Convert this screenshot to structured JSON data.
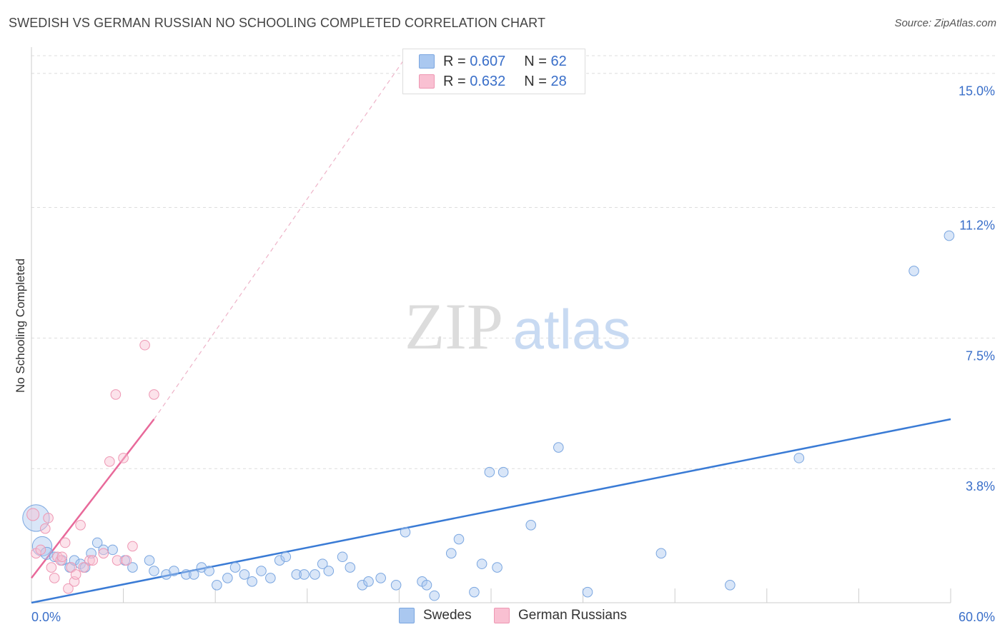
{
  "title": "SWEDISH VS GERMAN RUSSIAN NO SCHOOLING COMPLETED CORRELATION CHART",
  "source": "Source: ZipAtlas.com",
  "watermark": {
    "zip": "ZIP",
    "atlas": "atlas"
  },
  "legend": {
    "rows": [
      {
        "r_label": "R =",
        "r_value": "0.607",
        "n_label": "N =",
        "n_value": "62",
        "color": "#aac8f0",
        "border": "#7aa6e0"
      },
      {
        "r_label": "R =",
        "r_value": "0.632",
        "n_label": "N =",
        "n_value": "28",
        "color": "#f9c0d2",
        "border": "#ee97b3"
      }
    ]
  },
  "bottom_legend": [
    {
      "label": "Swedes",
      "color": "#aac8f0",
      "border": "#7aa6e0"
    },
    {
      "label": "German Russians",
      "color": "#f9c0d2",
      "border": "#ee97b3"
    }
  ],
  "chart_data": {
    "type": "scatter",
    "title": "SWEDISH VS GERMAN RUSSIAN NO SCHOOLING COMPLETED CORRELATION CHART",
    "xlabel": "",
    "ylabel": "No Schooling Completed",
    "xlim": [
      0,
      60
    ],
    "ylim": [
      0,
      15.5
    ],
    "x_tick_labels": [
      "0.0%",
      "60.0%"
    ],
    "y_ticks": [
      3.8,
      7.5,
      11.2,
      15.0
    ],
    "y_tick_labels": [
      "3.8%",
      "7.5%",
      "11.2%",
      "15.0%"
    ],
    "colors": {
      "swedes": "#3a7bd5",
      "german_russians": "#e8699a"
    },
    "series": [
      {
        "name": "Swedes",
        "points": [
          [
            0.3,
            2.4,
            2.2
          ],
          [
            0.7,
            1.6,
            1.6
          ],
          [
            1.0,
            1.4,
            1.0
          ],
          [
            1.5,
            1.3,
            0.8
          ],
          [
            2.0,
            1.2,
            0.8
          ],
          [
            2.5,
            1.0,
            0.8
          ],
          [
            2.8,
            1.2,
            0.8
          ],
          [
            3.2,
            1.1,
            0.8
          ],
          [
            3.5,
            1.0,
            0.8
          ],
          [
            3.9,
            1.4,
            0.8
          ],
          [
            4.3,
            1.7,
            0.8
          ],
          [
            4.7,
            1.5,
            0.8
          ],
          [
            5.3,
            1.5,
            0.8
          ],
          [
            6.1,
            1.2,
            0.8
          ],
          [
            6.6,
            1.0,
            0.8
          ],
          [
            7.7,
            1.2,
            0.8
          ],
          [
            8.0,
            0.9,
            0.8
          ],
          [
            8.8,
            0.8,
            0.8
          ],
          [
            9.3,
            0.9,
            0.8
          ],
          [
            10.1,
            0.8,
            0.8
          ],
          [
            10.6,
            0.8,
            0.8
          ],
          [
            11.1,
            1.0,
            0.8
          ],
          [
            11.6,
            0.9,
            0.8
          ],
          [
            12.1,
            0.5,
            0.8
          ],
          [
            12.8,
            0.7,
            0.8
          ],
          [
            13.3,
            1.0,
            0.8
          ],
          [
            13.9,
            0.8,
            0.8
          ],
          [
            14.4,
            0.6,
            0.8
          ],
          [
            15.0,
            0.9,
            0.8
          ],
          [
            15.6,
            0.7,
            0.8
          ],
          [
            16.2,
            1.2,
            0.8
          ],
          [
            16.6,
            1.3,
            0.8
          ],
          [
            17.3,
            0.8,
            0.8
          ],
          [
            17.8,
            0.8,
            0.8
          ],
          [
            18.5,
            0.8,
            0.8
          ],
          [
            19.0,
            1.1,
            0.8
          ],
          [
            19.4,
            0.9,
            0.8
          ],
          [
            20.3,
            1.3,
            0.8
          ],
          [
            20.8,
            1.0,
            0.8
          ],
          [
            21.6,
            0.5,
            0.8
          ],
          [
            22.0,
            0.6,
            0.8
          ],
          [
            22.8,
            0.7,
            0.8
          ],
          [
            23.8,
            0.5,
            0.8
          ],
          [
            24.4,
            2.0,
            0.8
          ],
          [
            25.5,
            0.6,
            0.8
          ],
          [
            25.8,
            0.5,
            0.8
          ],
          [
            26.3,
            0.2,
            0.8
          ],
          [
            27.4,
            1.4,
            0.8
          ],
          [
            27.9,
            1.8,
            0.8
          ],
          [
            28.9,
            0.3,
            0.8
          ],
          [
            29.4,
            1.1,
            0.8
          ],
          [
            29.9,
            3.7,
            0.8
          ],
          [
            30.4,
            1.0,
            0.8
          ],
          [
            30.8,
            3.7,
            0.8
          ],
          [
            32.6,
            2.2,
            0.8
          ],
          [
            34.4,
            4.4,
            0.8
          ],
          [
            36.3,
            0.3,
            0.8
          ],
          [
            41.1,
            1.4,
            0.8
          ],
          [
            45.6,
            0.5,
            0.8
          ],
          [
            50.1,
            4.1,
            0.8
          ],
          [
            57.6,
            9.4,
            0.8
          ],
          [
            59.9,
            10.4,
            0.8
          ]
        ],
        "trend": {
          "x0": 0,
          "y0": 0.0,
          "x1": 60,
          "y1": 5.2
        }
      },
      {
        "name": "German Russians",
        "points": [
          [
            0.1,
            2.5,
            1.0
          ],
          [
            0.3,
            1.4,
            0.8
          ],
          [
            0.6,
            1.5,
            0.8
          ],
          [
            0.9,
            2.1,
            0.8
          ],
          [
            1.1,
            2.4,
            0.8
          ],
          [
            1.3,
            1.0,
            0.8
          ],
          [
            1.5,
            0.7,
            0.8
          ],
          [
            1.7,
            1.3,
            0.8
          ],
          [
            1.9,
            1.2,
            0.8
          ],
          [
            2.0,
            1.3,
            0.8
          ],
          [
            2.2,
            1.7,
            0.8
          ],
          [
            2.4,
            0.4,
            0.8
          ],
          [
            2.6,
            1.0,
            0.8
          ],
          [
            2.8,
            0.6,
            0.8
          ],
          [
            2.9,
            0.8,
            0.8
          ],
          [
            3.2,
            2.2,
            0.8
          ],
          [
            3.4,
            1.0,
            0.8
          ],
          [
            3.8,
            1.2,
            0.8
          ],
          [
            4.0,
            1.2,
            0.8
          ],
          [
            4.7,
            1.4,
            0.8
          ],
          [
            5.1,
            4.0,
            0.8
          ],
          [
            5.5,
            5.9,
            0.8
          ],
          [
            5.6,
            1.2,
            0.8
          ],
          [
            6.0,
            4.1,
            0.8
          ],
          [
            6.2,
            1.2,
            0.8
          ],
          [
            6.6,
            1.6,
            0.8
          ],
          [
            7.4,
            7.3,
            0.8
          ],
          [
            8.0,
            5.9,
            0.8
          ]
        ],
        "trend": {
          "x0": 0,
          "y0": 0.7,
          "x1": 8.0,
          "y1": 5.2
        },
        "trend_extension": {
          "x0": 8.0,
          "y0": 5.2,
          "x1": 24.5,
          "y1": 15.5
        }
      }
    ]
  }
}
